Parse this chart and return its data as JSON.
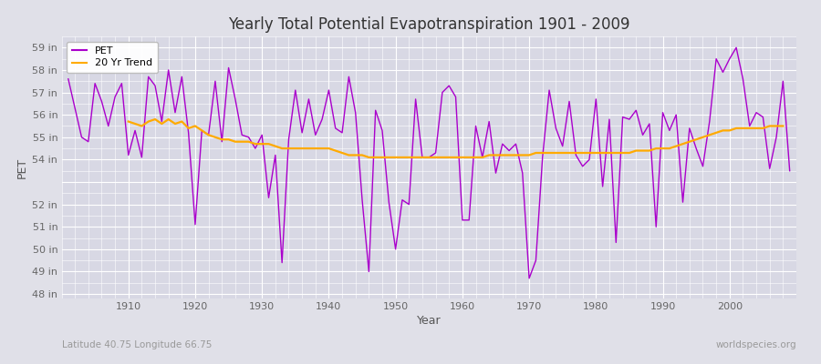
{
  "title": "Yearly Total Potential Evapotranspiration 1901 - 2009",
  "xlabel": "Year",
  "ylabel": "PET",
  "lat_lon_label": "Latitude 40.75 Longitude 66.75",
  "watermark": "worldspecies.org",
  "pet_color": "#aa00cc",
  "trend_color": "#ffaa00",
  "figure_bg_color": "#e0e0e8",
  "plot_bg_color": "#d8d8e4",
  "grid_color": "#ffffff",
  "ylim": [
    47.8,
    59.5
  ],
  "xlim": [
    1900,
    2010
  ],
  "xticks": [
    1910,
    1920,
    1930,
    1940,
    1950,
    1960,
    1970,
    1980,
    1990,
    2000
  ],
  "yticks": [
    48,
    49,
    50,
    51,
    52,
    53,
    54,
    55,
    56,
    57,
    58,
    59
  ],
  "ytick_labels": [
    "48 in",
    "49 in",
    "50 in",
    "51 in",
    "52 in",
    "",
    "54 in",
    "55 in",
    "56 in",
    "57 in",
    "58 in",
    "59 in"
  ],
  "years": [
    1901,
    1902,
    1903,
    1904,
    1905,
    1906,
    1907,
    1908,
    1909,
    1910,
    1911,
    1912,
    1913,
    1914,
    1915,
    1916,
    1917,
    1918,
    1919,
    1920,
    1921,
    1922,
    1923,
    1924,
    1925,
    1926,
    1927,
    1928,
    1929,
    1930,
    1931,
    1932,
    1933,
    1934,
    1935,
    1936,
    1937,
    1938,
    1939,
    1940,
    1941,
    1942,
    1943,
    1944,
    1945,
    1946,
    1947,
    1948,
    1949,
    1950,
    1951,
    1952,
    1953,
    1954,
    1955,
    1956,
    1957,
    1958,
    1959,
    1960,
    1961,
    1962,
    1963,
    1964,
    1965,
    1966,
    1967,
    1968,
    1969,
    1970,
    1971,
    1972,
    1973,
    1974,
    1975,
    1976,
    1977,
    1978,
    1979,
    1980,
    1981,
    1982,
    1983,
    1984,
    1985,
    1986,
    1987,
    1988,
    1989,
    1990,
    1991,
    1992,
    1993,
    1994,
    1995,
    1996,
    1997,
    1998,
    1999,
    2000,
    2001,
    2002,
    2003,
    2004,
    2005,
    2006,
    2007,
    2008,
    2009
  ],
  "pet": [
    57.6,
    56.3,
    55.0,
    54.8,
    57.4,
    56.6,
    55.5,
    56.8,
    57.4,
    54.2,
    55.3,
    54.1,
    57.7,
    57.3,
    55.7,
    58.0,
    56.1,
    57.7,
    55.2,
    51.1,
    55.3,
    55.1,
    57.5,
    54.8,
    58.1,
    56.7,
    55.1,
    55.0,
    54.5,
    55.1,
    52.3,
    54.2,
    49.4,
    54.9,
    57.1,
    55.2,
    56.7,
    55.1,
    55.8,
    57.1,
    55.4,
    55.2,
    57.7,
    56.1,
    52.2,
    49.0,
    56.2,
    55.3,
    52.1,
    50.0,
    52.2,
    52.0,
    56.7,
    54.1,
    54.1,
    54.3,
    57.0,
    57.3,
    56.8,
    51.3,
    51.3,
    55.5,
    54.1,
    55.7,
    53.4,
    54.7,
    54.4,
    54.7,
    53.4,
    48.7,
    49.5,
    54.1,
    57.1,
    55.4,
    54.6,
    56.6,
    54.2,
    53.7,
    54.0,
    56.7,
    52.8,
    55.8,
    50.3,
    55.9,
    55.8,
    56.2,
    55.1,
    55.6,
    51.0,
    56.1,
    55.3,
    56.0,
    52.1,
    55.4,
    54.5,
    53.7,
    55.7,
    58.5,
    57.9,
    58.5,
    59.0,
    57.6,
    55.5,
    56.1,
    55.9,
    53.6,
    55.0,
    57.5,
    53.5
  ],
  "trend": [
    null,
    null,
    null,
    null,
    null,
    null,
    null,
    null,
    null,
    55.7,
    55.6,
    55.5,
    55.7,
    55.8,
    55.6,
    55.8,
    55.6,
    55.7,
    55.4,
    55.5,
    55.3,
    55.1,
    55.0,
    54.9,
    54.9,
    54.8,
    54.8,
    54.8,
    54.7,
    54.7,
    54.7,
    54.6,
    54.5,
    54.5,
    54.5,
    54.5,
    54.5,
    54.5,
    54.5,
    54.5,
    54.4,
    54.3,
    54.2,
    54.2,
    54.2,
    54.1,
    54.1,
    54.1,
    54.1,
    54.1,
    54.1,
    54.1,
    54.1,
    54.1,
    54.1,
    54.1,
    54.1,
    54.1,
    54.1,
    54.1,
    54.1,
    54.1,
    54.1,
    54.2,
    54.2,
    54.2,
    54.2,
    54.2,
    54.2,
    54.2,
    54.3,
    54.3,
    54.3,
    54.3,
    54.3,
    54.3,
    54.3,
    54.3,
    54.3,
    54.3,
    54.3,
    54.3,
    54.3,
    54.3,
    54.3,
    54.4,
    54.4,
    54.4,
    54.5,
    54.5,
    54.5,
    54.6,
    54.7,
    54.8,
    54.9,
    55.0,
    55.1,
    55.2,
    55.3,
    55.3,
    55.4,
    55.4,
    55.4,
    55.4,
    55.4,
    55.5,
    55.5,
    55.5
  ]
}
